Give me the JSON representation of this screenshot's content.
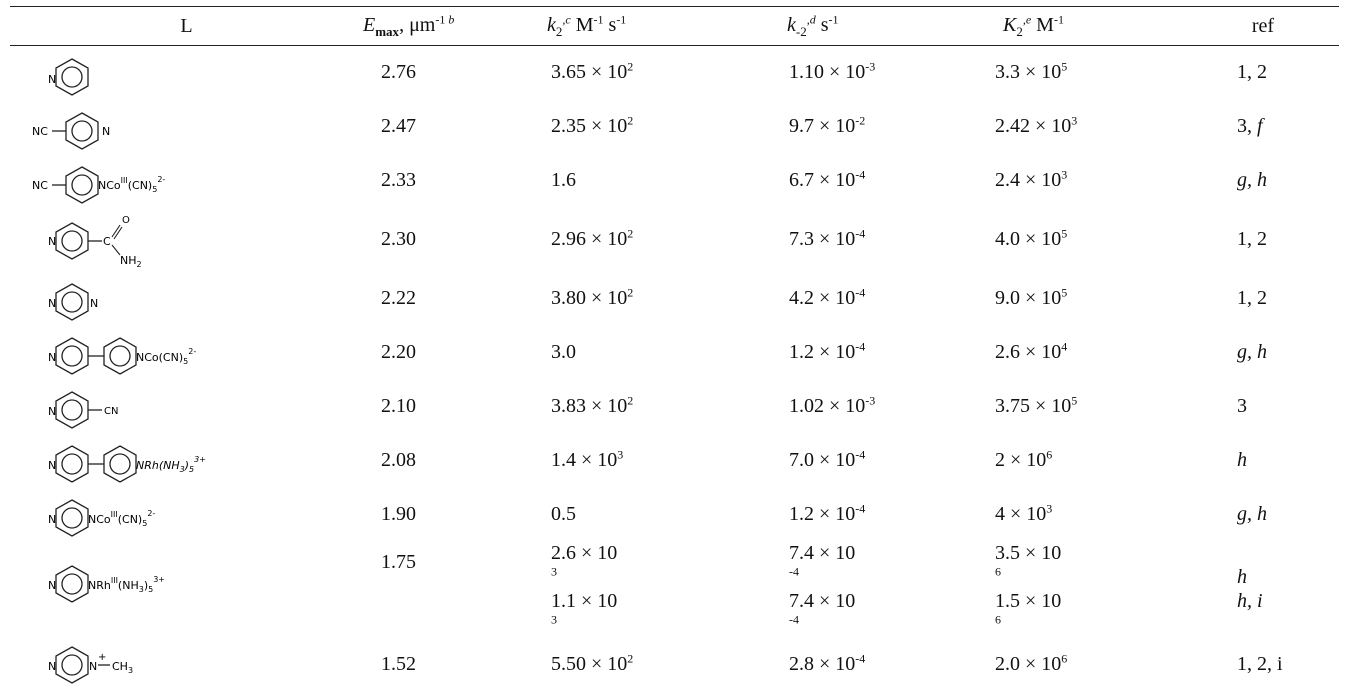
{
  "header": {
    "ligand": "L",
    "emax": "E",
    "emax_sub": "max",
    "emax_unit": ", μm",
    "emax_unit_sup": "-1",
    "emax_note": " b",
    "k2": "k",
    "k2_sub": "2",
    "k2_note": ",c",
    "k2_unit": " M",
    "k2_unit_sup": "-1",
    "k2_unit2": " s",
    "k2_unit2_sup": "-1",
    "km2": "k",
    "km2_sub": "-2",
    "km2_note": ",d",
    "km2_unit": " s",
    "km2_unit_sup": "-1",
    "K2": "K",
    "K2_sub": "2",
    "K2_note": ",e",
    "K2_unit": " M",
    "K2_unit_sup": "-1",
    "ref": "ref"
  },
  "rows": [
    {
      "ligand_labels": [],
      "emax": "2.76",
      "k2": [
        "3.65 × 10",
        "2"
      ],
      "km2": [
        "1.10 × 10",
        "-3"
      ],
      "K2": [
        "3.3 × 10",
        "5"
      ],
      "ref": "1, 2"
    },
    {
      "ligand_labels": [
        "NC",
        "N"
      ],
      "emax": "2.47",
      "k2": [
        "2.35 × 10",
        "2"
      ],
      "km2": [
        "9.7 × 10",
        "-2"
      ],
      "K2": [
        "2.42 × 10",
        "3"
      ],
      "ref": "3, f"
    },
    {
      "ligand_labels": [
        "NC",
        "NCo",
        "III",
        "(CN)",
        "5",
        "2-"
      ],
      "emax": "2.33",
      "k2": [
        "1.6",
        ""
      ],
      "km2": [
        "6.7 × 10",
        "-4"
      ],
      "K2": [
        "2.4 × 10",
        "3"
      ],
      "ref": "g, h"
    },
    {
      "ligand_labels": [
        "N",
        "C",
        "O",
        "NH",
        "2"
      ],
      "emax": "2.30",
      "k2": [
        "2.96 × 10",
        "2"
      ],
      "km2": [
        "7.3 × 10",
        "-4"
      ],
      "K2": [
        "4.0 × 10",
        "5"
      ],
      "ref": "1, 2"
    },
    {
      "ligand_labels": [
        "N",
        "N"
      ],
      "emax": "2.22",
      "k2": [
        "3.80 × 10",
        "2"
      ],
      "km2": [
        "4.2 × 10",
        "-4"
      ],
      "K2": [
        "9.0 × 10",
        "5"
      ],
      "ref": "1, 2"
    },
    {
      "ligand_labels": [
        "N",
        "NCo(CN)",
        "5",
        "2-"
      ],
      "emax": "2.20",
      "k2": [
        "3.0",
        ""
      ],
      "km2": [
        "1.2 × 10",
        "-4"
      ],
      "K2": [
        "2.6 × 10",
        "4"
      ],
      "ref": "g, h"
    },
    {
      "ligand_labels": [
        "N",
        "CN"
      ],
      "emax": "2.10",
      "k2": [
        "3.83 × 10",
        "2"
      ],
      "km2": [
        "1.02 × 10",
        "-3"
      ],
      "K2": [
        "3.75 × 10",
        "5"
      ],
      "ref": "3"
    },
    {
      "ligand_labels": [
        "N",
        "NRh(NH",
        "3",
        ")",
        "5",
        "3+"
      ],
      "emax": "2.08",
      "k2": [
        "1.4 × 10",
        "3"
      ],
      "km2": [
        "7.0 × 10",
        "-4"
      ],
      "K2": [
        "2 × 10",
        "6"
      ],
      "ref": "h"
    },
    {
      "ligand_labels": [
        "N",
        "NCo",
        "III",
        "(CN)",
        "5",
        "2-"
      ],
      "emax": "1.90",
      "k2": [
        "0.5",
        ""
      ],
      "km2": [
        "1.2 × 10",
        "-4"
      ],
      "K2": [
        "4 × 10",
        "3"
      ],
      "ref": "g, h"
    },
    {
      "ligand_labels": [
        "N",
        "NRh",
        "III",
        "(NH",
        "3",
        ")",
        "5",
        "3+"
      ],
      "emax": "1.75",
      "k2_lines": [
        [
          "2.6 × 10",
          "3"
        ],
        [
          "1.1 × 10",
          "3"
        ]
      ],
      "km2_lines": [
        [
          "7.4 × 10",
          "-4"
        ],
        [
          "7.4 × 10",
          "-4"
        ]
      ],
      "K2_lines": [
        [
          "3.5 × 10",
          "6"
        ],
        [
          "1.5 × 10",
          "6"
        ]
      ],
      "ref_lines": [
        "h",
        "h, i"
      ]
    },
    {
      "ligand_labels": [
        "N",
        "N",
        "+",
        "CH",
        "3"
      ],
      "emax": "1.52",
      "k2": [
        "5.50 × 10",
        "2"
      ],
      "km2": [
        "2.8 × 10",
        "-4"
      ],
      "K2": [
        "2.0 × 10",
        "6"
      ],
      "ref": "1, 2, i"
    }
  ]
}
